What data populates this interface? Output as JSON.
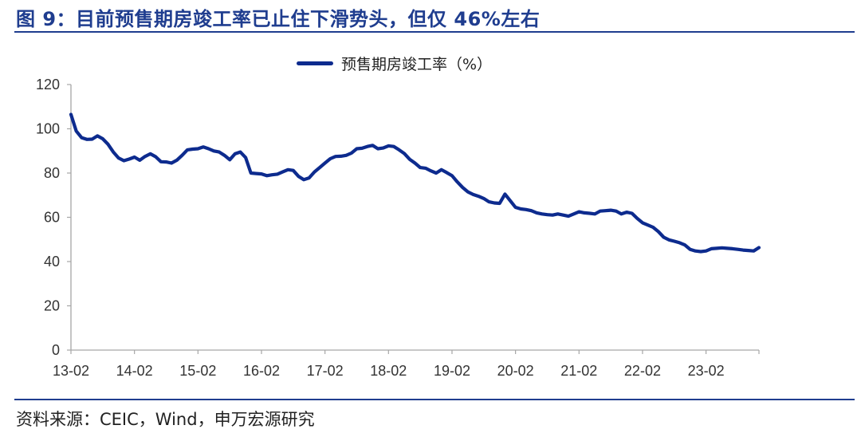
{
  "title": "图 9：目前预售期房竣工率已止住下滑势头，但仅 46%左右",
  "source": "资料来源：CEIC，Wind，申万宏源研究",
  "colors": {
    "accent": "#1f3d8f",
    "series": "#0d2b8e"
  },
  "chart_data": {
    "type": "line",
    "title": "",
    "xlabel": "",
    "ylabel": "",
    "ylim": [
      0,
      120
    ],
    "yticks": [
      "0",
      "20",
      "40",
      "60",
      "80",
      "100",
      "120"
    ],
    "xticks": [
      "13-02",
      "14-02",
      "15-02",
      "16-02",
      "17-02",
      "18-02",
      "19-02",
      "20-02",
      "21-02",
      "22-02",
      "23-02"
    ],
    "legend_position": "top",
    "grid": false,
    "series": [
      {
        "name": "预售期房竣工率（%）",
        "start": "13-02",
        "frequency": "monthly",
        "values": [
          106.5,
          99,
          96,
          95.2,
          95.3,
          96.8,
          95.5,
          93,
          89.5,
          86.8,
          85.6,
          86.3,
          87.2,
          85.8,
          87.5,
          88.7,
          87.4,
          85.1,
          85,
          84.5,
          85.8,
          88,
          90.5,
          90.8,
          91,
          91.8,
          91,
          90,
          89.5,
          88,
          86,
          88.7,
          89.5,
          87,
          80,
          79.8,
          79.6,
          78.8,
          79.2,
          79.5,
          80.5,
          81.5,
          81.2,
          78.5,
          77,
          77.8,
          80.5,
          82.5,
          84.5,
          86.5,
          87.5,
          87.6,
          88,
          89,
          91,
          91.2,
          92,
          92.5,
          91,
          91.3,
          92.3,
          92,
          90.5,
          88.8,
          86.2,
          84.5,
          82.5,
          82.2,
          81,
          80,
          81.5,
          80.2,
          78.8,
          76,
          73.5,
          71.5,
          70.3,
          69.5,
          68.5,
          67,
          66.5,
          66.3,
          70.5,
          67.5,
          64.5,
          63.8,
          63.5,
          63,
          62,
          61.5,
          61.2,
          61,
          61.5,
          61,
          60.5,
          61.5,
          62.5,
          62,
          61.8,
          61.5,
          62.8,
          63,
          63.2,
          62.8,
          61.5,
          62.3,
          61.8,
          59.5,
          57.5,
          56.5,
          55.5,
          53.5,
          51,
          49.8,
          49.2,
          48.5,
          47.5,
          45.5,
          44.8,
          44.5,
          44.8,
          45.8,
          46,
          46.2,
          46,
          45.8,
          45.5,
          45.2,
          45,
          44.8,
          46.3
        ]
      }
    ]
  }
}
